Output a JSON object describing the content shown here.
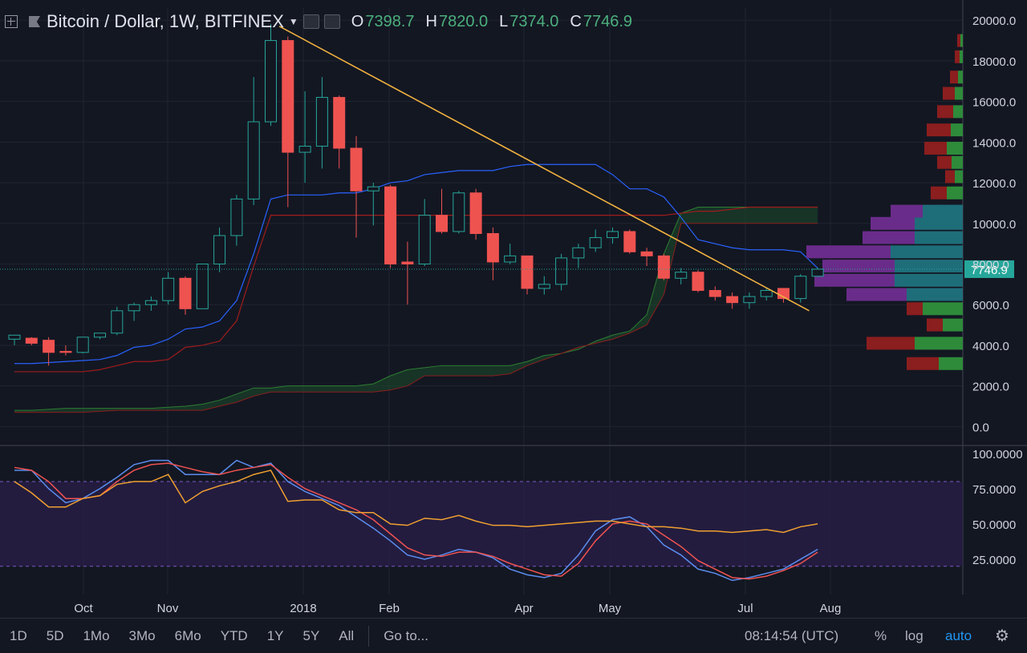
{
  "header": {
    "symbol": "Bitcoin / Dollar, 1W, BITFINEX",
    "open_label": "O",
    "open_value": "7398.7",
    "high_label": "H",
    "high_value": "7820.0",
    "low_label": "L",
    "low_value": "7374.0",
    "close_label": "C",
    "close_value": "7746.9"
  },
  "price_badge": "7746.9",
  "toolbar": {
    "ranges": [
      "1D",
      "5D",
      "1Mo",
      "3Mo",
      "6Mo",
      "YTD",
      "1Y",
      "5Y",
      "All"
    ],
    "goto": "Go to...",
    "time": "08:14:54 (UTC)",
    "percent": "%",
    "log": "log",
    "auto": "auto"
  },
  "colors": {
    "up": "#26a69a",
    "down": "#ef5350",
    "trendline": "#f0b040",
    "background": "#131722"
  },
  "chart_data": [
    {
      "type": "candlestick",
      "title": "Bitcoin / Dollar, 1W, BITFINEX",
      "x_labels": [
        "Oct",
        "Nov",
        "2018",
        "Feb",
        "Apr",
        "May",
        "Jul",
        "Aug"
      ],
      "y_ticks": [
        0,
        2000,
        4000,
        6000,
        8000,
        10000,
        12000,
        14000,
        16000,
        18000,
        20000
      ],
      "ylim": [
        -300,
        20600
      ],
      "candles": [
        {
          "o": 4300,
          "h": 4500,
          "l": 4000,
          "c": 4500
        },
        {
          "o": 4350,
          "h": 4400,
          "l": 4000,
          "c": 4100
        },
        {
          "o": 4250,
          "h": 4400,
          "l": 3000,
          "c": 3650
        },
        {
          "o": 3700,
          "h": 4000,
          "l": 3500,
          "c": 3650
        },
        {
          "o": 3650,
          "h": 4200,
          "l": 3600,
          "c": 4400
        },
        {
          "o": 4400,
          "h": 4600,
          "l": 4300,
          "c": 4600
        },
        {
          "o": 4600,
          "h": 5900,
          "l": 4500,
          "c": 5700
        },
        {
          "o": 5700,
          "h": 6100,
          "l": 5200,
          "c": 6000
        },
        {
          "o": 6000,
          "h": 6400,
          "l": 5700,
          "c": 6200
        },
        {
          "o": 6200,
          "h": 7600,
          "l": 6000,
          "c": 7300
        },
        {
          "o": 7300,
          "h": 7400,
          "l": 5500,
          "c": 5800
        },
        {
          "o": 5800,
          "h": 8000,
          "l": 5800,
          "c": 8000
        },
        {
          "o": 8000,
          "h": 9800,
          "l": 7600,
          "c": 9400
        },
        {
          "o": 9400,
          "h": 11400,
          "l": 8900,
          "c": 11200
        },
        {
          "o": 11200,
          "h": 17200,
          "l": 10900,
          "c": 15000
        },
        {
          "o": 15000,
          "h": 19800,
          "l": 14800,
          "c": 19000
        },
        {
          "o": 19000,
          "h": 19200,
          "l": 10800,
          "c": 13500
        },
        {
          "o": 13500,
          "h": 16500,
          "l": 12000,
          "c": 13800
        },
        {
          "o": 13800,
          "h": 17200,
          "l": 12700,
          "c": 16200
        },
        {
          "o": 16200,
          "h": 16300,
          "l": 12700,
          "c": 13700
        },
        {
          "o": 13700,
          "h": 14300,
          "l": 9300,
          "c": 11600
        },
        {
          "o": 11600,
          "h": 12000,
          "l": 9900,
          "c": 11800
        },
        {
          "o": 11800,
          "h": 11900,
          "l": 7800,
          "c": 8000
        },
        {
          "o": 8100,
          "h": 9100,
          "l": 6000,
          "c": 8000
        },
        {
          "o": 8000,
          "h": 11200,
          "l": 7900,
          "c": 10400
        },
        {
          "o": 10400,
          "h": 11700,
          "l": 9500,
          "c": 9600
        },
        {
          "o": 9600,
          "h": 11600,
          "l": 9500,
          "c": 11500
        },
        {
          "o": 11500,
          "h": 11700,
          "l": 9200,
          "c": 9500
        },
        {
          "o": 9500,
          "h": 9800,
          "l": 7200,
          "c": 8100
        },
        {
          "o": 8100,
          "h": 9000,
          "l": 8000,
          "c": 8400
        },
        {
          "o": 8400,
          "h": 8400,
          "l": 6500,
          "c": 6800
        },
        {
          "o": 6800,
          "h": 7400,
          "l": 6500,
          "c": 7000
        },
        {
          "o": 7000,
          "h": 8500,
          "l": 6700,
          "c": 8300
        },
        {
          "o": 8300,
          "h": 9000,
          "l": 7800,
          "c": 8800
        },
        {
          "o": 8800,
          "h": 9700,
          "l": 8600,
          "c": 9300
        },
        {
          "o": 9300,
          "h": 9800,
          "l": 9000,
          "c": 9600
        },
        {
          "o": 9600,
          "h": 9700,
          "l": 8500,
          "c": 8600
        },
        {
          "o": 8600,
          "h": 8800,
          "l": 7900,
          "c": 8400
        },
        {
          "o": 8400,
          "h": 8500,
          "l": 7200,
          "c": 7300
        },
        {
          "o": 7300,
          "h": 7800,
          "l": 7000,
          "c": 7600
        },
        {
          "o": 7600,
          "h": 7700,
          "l": 6600,
          "c": 6700
        },
        {
          "o": 6700,
          "h": 6900,
          "l": 6200,
          "c": 6400
        },
        {
          "o": 6400,
          "h": 6600,
          "l": 5800,
          "c": 6100
        },
        {
          "o": 6100,
          "h": 6600,
          "l": 5800,
          "c": 6400
        },
        {
          "o": 6400,
          "h": 6800,
          "l": 6200,
          "c": 6700
        },
        {
          "o": 6800,
          "h": 6800,
          "l": 6100,
          "c": 6300
        },
        {
          "o": 6300,
          "h": 7500,
          "l": 6100,
          "c": 7400
        },
        {
          "o": 7398.7,
          "h": 7820,
          "l": 7374,
          "c": 7746.9
        }
      ],
      "overlays": {
        "blue_line": [
          3100,
          3100,
          3150,
          3200,
          3250,
          3300,
          3500,
          3900,
          4000,
          4300,
          4800,
          4900,
          5200,
          6200,
          8500,
          11200,
          11400,
          11400,
          11400,
          11500,
          11500,
          11700,
          12000,
          12100,
          12400,
          12500,
          12600,
          12600,
          12600,
          12800,
          12900,
          12900,
          12900,
          12900,
          12900,
          12400,
          11700,
          11700,
          11300,
          10300,
          9200,
          9000,
          8800,
          8700,
          8700,
          8700,
          8600,
          7800
        ],
        "red_line": [
          2700,
          2700,
          2700,
          2700,
          2700,
          2800,
          3000,
          3200,
          3200,
          3300,
          3900,
          4000,
          4200,
          5200,
          7900,
          10400,
          10400,
          10400,
          10400,
          10400,
          10400,
          10400,
          10400,
          10400,
          10400,
          10400,
          10400,
          10400,
          10400,
          10400,
          10400,
          10400,
          10400,
          10400,
          10400,
          10400,
          10400,
          10400,
          10400,
          10500,
          10600,
          10600,
          10700,
          10800,
          10800,
          10800,
          10800,
          10800
        ],
        "cloud_upper": [
          800,
          800,
          850,
          900,
          900,
          900,
          900,
          900,
          900,
          950,
          1000,
          1100,
          1300,
          1600,
          1900,
          1900,
          2000,
          2000,
          2000,
          2000,
          2000,
          2100,
          2500,
          2800,
          2900,
          3000,
          3000,
          3000,
          3000,
          3000,
          3200,
          3500,
          3600,
          3800,
          4200,
          4500,
          4700,
          5500,
          8500,
          10500,
          10800,
          10800,
          10800,
          10800,
          10800,
          10800,
          10800,
          10800
        ],
        "cloud_lower": [
          700,
          700,
          700,
          700,
          700,
          750,
          800,
          800,
          800,
          800,
          800,
          800,
          1000,
          1200,
          1500,
          1700,
          1700,
          1700,
          1700,
          1700,
          1700,
          1700,
          1800,
          2000,
          2500,
          2500,
          2500,
          2500,
          2500,
          2600,
          3000,
          3300,
          3600,
          3900,
          4100,
          4300,
          4600,
          5000,
          6500,
          10000,
          10000,
          10000,
          10000,
          10000,
          10000,
          10000,
          10000,
          10000
        ],
        "trendline": {
          "from": [
            15.5,
            19700
          ],
          "to": [
            46.5,
            5700
          ]
        }
      },
      "volume_profile": [
        {
          "price": 3100,
          "a": 40,
          "b": 30
        },
        {
          "price": 4100,
          "a": 60,
          "b": 60
        },
        {
          "price": 5000,
          "a": 20,
          "b": 25
        },
        {
          "price": 5800,
          "a": 20,
          "b": 50
        },
        {
          "price": 6500,
          "a": 75,
          "b": 70
        },
        {
          "price": 7200,
          "a": 100,
          "b": 85
        },
        {
          "price": 7900,
          "a": 90,
          "b": 85
        },
        {
          "price": 8600,
          "a": 105,
          "b": 90
        },
        {
          "price": 9300,
          "a": 65,
          "b": 60
        },
        {
          "price": 10000,
          "a": 55,
          "b": 60
        },
        {
          "price": 10600,
          "a": 40,
          "b": 50
        },
        {
          "price": 11500,
          "a": 20,
          "b": 20
        },
        {
          "price": 12300,
          "a": 12,
          "b": 10
        },
        {
          "price": 13000,
          "a": 18,
          "b": 14
        },
        {
          "price": 13700,
          "a": 28,
          "b": 20
        },
        {
          "price": 14600,
          "a": 30,
          "b": 15
        },
        {
          "price": 15500,
          "a": 20,
          "b": 12
        },
        {
          "price": 16400,
          "a": 15,
          "b": 10
        },
        {
          "price": 17200,
          "a": 10,
          "b": 6
        },
        {
          "price": 18200,
          "a": 6,
          "b": 4
        },
        {
          "price": 19000,
          "a": 4,
          "b": 3
        }
      ]
    },
    {
      "type": "line",
      "title": "",
      "y_ticks": [
        25,
        50,
        75,
        100
      ],
      "ylim": [
        0,
        105
      ],
      "bands": [
        20,
        80
      ],
      "series": [
        {
          "values": [
            88,
            88,
            75,
            65,
            68,
            75,
            83,
            92,
            95,
            95,
            85,
            85,
            85,
            95,
            90,
            93,
            80,
            73,
            68,
            63,
            55,
            47,
            38,
            28,
            25,
            28,
            32,
            30,
            26,
            18,
            14,
            12,
            15,
            28,
            45,
            53,
            55,
            48,
            35,
            28,
            18,
            15,
            10,
            12,
            15,
            18,
            25,
            32
          ]
        },
        {
          "values": [
            90,
            88,
            80,
            68,
            68,
            70,
            80,
            88,
            92,
            93,
            90,
            87,
            85,
            88,
            90,
            92,
            83,
            75,
            70,
            65,
            60,
            53,
            43,
            33,
            28,
            27,
            30,
            30,
            27,
            22,
            18,
            14,
            13,
            22,
            38,
            50,
            52,
            50,
            42,
            34,
            24,
            18,
            12,
            11,
            13,
            17,
            22,
            30
          ]
        },
        {
          "values": [
            80,
            72,
            62,
            62,
            68,
            70,
            78,
            80,
            80,
            85,
            65,
            73,
            77,
            80,
            85,
            88,
            66,
            67,
            67,
            60,
            58,
            58,
            50,
            49,
            54,
            53,
            56,
            52,
            49,
            49,
            48,
            49,
            50,
            51,
            52,
            52,
            50,
            48,
            48,
            47,
            45,
            45,
            44,
            45,
            46,
            44,
            48,
            50
          ]
        }
      ]
    }
  ]
}
